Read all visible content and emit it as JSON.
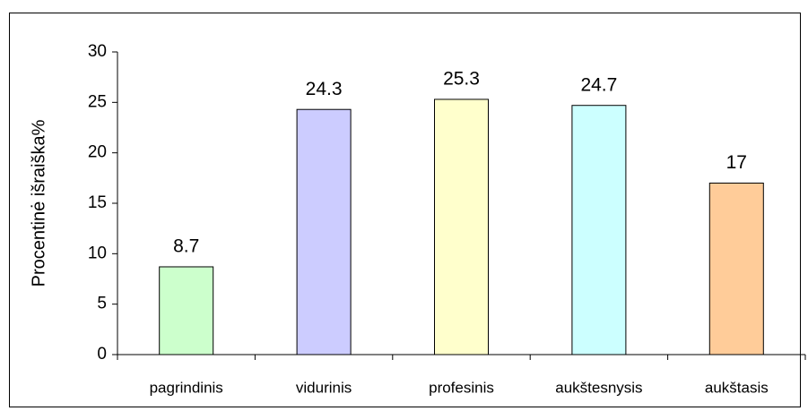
{
  "chart_data": {
    "type": "bar",
    "y_label": "Procentinė išraiška%",
    "categories": [
      "pagrindinis",
      "vidurinis",
      "profesinis",
      "aukštesnysis",
      "aukštasis"
    ],
    "values": [
      8.7,
      24.3,
      25.3,
      24.7,
      17
    ],
    "colors": [
      "#ccffcc",
      "#ccccff",
      "#ffffcc",
      "#ccffff",
      "#ffcc99"
    ],
    "ylim": [
      0,
      30
    ],
    "yticks": [
      0,
      5,
      10,
      15,
      20,
      25,
      30
    ],
    "grid": false
  }
}
